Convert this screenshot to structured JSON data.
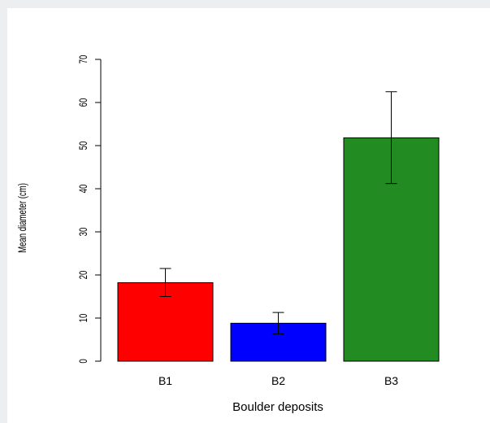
{
  "chart_data": {
    "type": "bar",
    "title": "",
    "xlabel": "Boulder deposits",
    "ylabel": "Mean diameter (cm)",
    "categories": [
      "B1",
      "B2",
      "B3"
    ],
    "values": [
      18.2,
      8.8,
      51.8
    ],
    "error_bars": [
      {
        "low": 15.0,
        "high": 21.5
      },
      {
        "low": 6.3,
        "high": 11.3
      },
      {
        "low": 41.2,
        "high": 62.5
      }
    ],
    "colors": [
      "#ff0000",
      "#0000ff",
      "#228b22"
    ],
    "ylim": [
      0,
      70
    ],
    "yticks": [
      "0",
      "10",
      "20",
      "30",
      "40",
      "50",
      "60",
      "70"
    ],
    "grid": false,
    "legend": false
  }
}
